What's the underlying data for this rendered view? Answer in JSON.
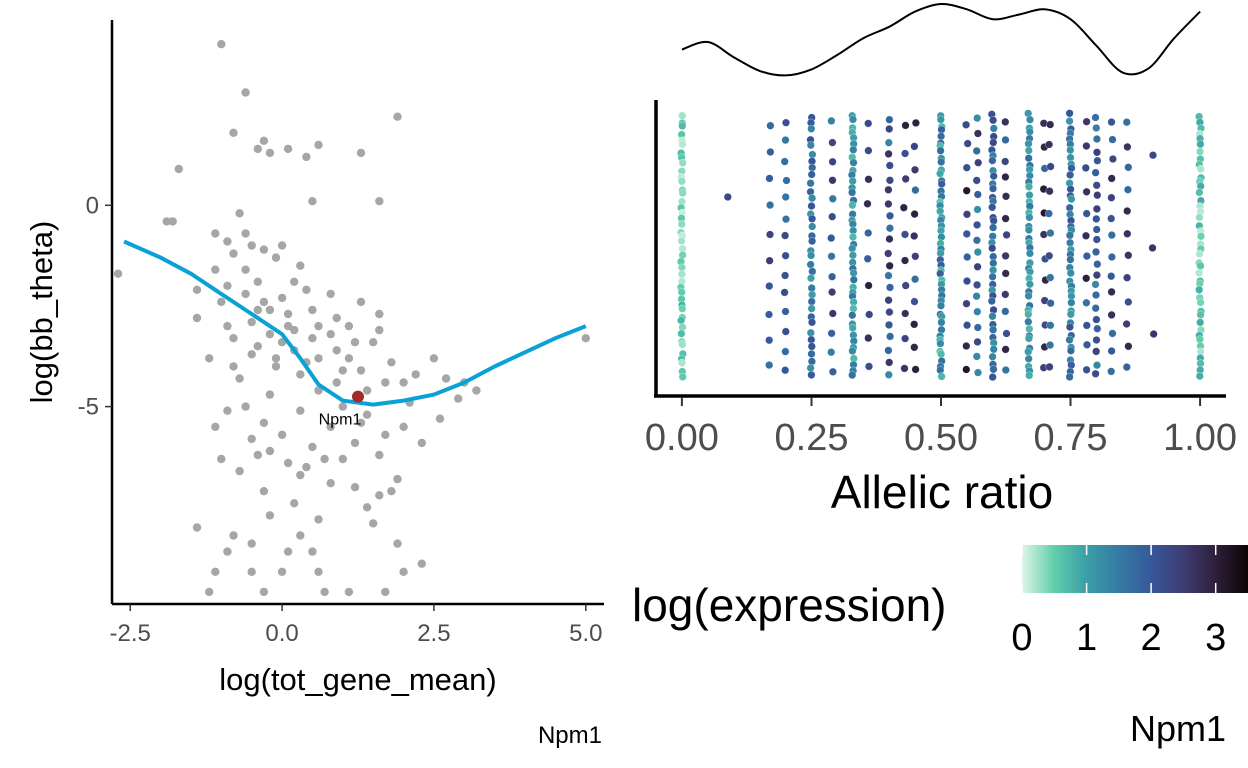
{
  "chart_data": [
    {
      "type": "scatter",
      "title": "",
      "xlabel": "log(tot_gene_mean)",
      "ylabel": "log(bb_theta)",
      "xlim": [
        -2.8,
        5.3
      ],
      "ylim": [
        -9.9,
        4.6
      ],
      "xticks": [
        -2.5,
        0.0,
        2.5,
        5.0
      ],
      "xtick_labels": [
        "-2.5",
        "0.0",
        "2.5",
        "5.0"
      ],
      "yticks": [
        0,
        -5
      ],
      "ytick_labels": [
        "0",
        "-5"
      ],
      "caption": "Npm1",
      "point_color": "#a6a6a6",
      "points_approximate": [
        [
          -1.0,
          4.0
        ],
        [
          -0.6,
          2.8
        ],
        [
          1.9,
          2.2
        ],
        [
          -0.8,
          1.8
        ],
        [
          -0.3,
          1.6
        ],
        [
          0.6,
          1.5
        ],
        [
          -0.4,
          1.4
        ],
        [
          0.1,
          1.4
        ],
        [
          0.4,
          1.2
        ],
        [
          1.3,
          1.3
        ],
        [
          -0.2,
          1.3
        ],
        [
          -1.7,
          0.9
        ],
        [
          1.6,
          0.1
        ],
        [
          0.5,
          0.1
        ],
        [
          -0.7,
          -0.2
        ],
        [
          -1.9,
          -0.4
        ],
        [
          -1.8,
          -0.4
        ],
        [
          -2.7,
          -1.7
        ],
        [
          -1.1,
          -0.7
        ],
        [
          -0.9,
          -0.9
        ],
        [
          -0.5,
          -1.0
        ],
        [
          -0.3,
          -1.1
        ],
        [
          -0.1,
          -1.3
        ],
        [
          0.0,
          -1.0
        ],
        [
          0.3,
          -1.5
        ],
        [
          -0.6,
          -1.6
        ],
        [
          0.2,
          -1.9
        ],
        [
          -1.4,
          -2.1
        ],
        [
          -1.0,
          -2.4
        ],
        [
          -0.2,
          -2.6
        ],
        [
          0.5,
          -2.6
        ],
        [
          0.9,
          -2.8
        ],
        [
          -1.4,
          -2.8
        ],
        [
          -0.5,
          -2.9
        ],
        [
          0.1,
          -3.0
        ],
        [
          0.8,
          -3.2
        ],
        [
          1.5,
          -3.4
        ],
        [
          1.6,
          -2.7
        ],
        [
          1.6,
          -3.1
        ],
        [
          1.3,
          -2.4
        ],
        [
          -0.8,
          -3.3
        ],
        [
          -0.4,
          -3.5
        ],
        [
          0.2,
          -3.6
        ],
        [
          0.6,
          -3.8
        ],
        [
          1.1,
          -3.8
        ],
        [
          1.8,
          -3.9
        ],
        [
          2.0,
          -4.4
        ],
        [
          2.5,
          -3.8
        ],
        [
          -0.1,
          -4.0
        ],
        [
          0.3,
          -4.2
        ],
        [
          0.9,
          -4.4
        ],
        [
          1.4,
          -4.6
        ],
        [
          2.1,
          -4.9
        ],
        [
          2.7,
          -4.3
        ],
        [
          3.0,
          -4.4
        ],
        [
          2.9,
          -4.8
        ],
        [
          -0.7,
          -4.3
        ],
        [
          -0.2,
          -4.7
        ],
        [
          0.3,
          -5.1
        ],
        [
          0.8,
          -5.5
        ],
        [
          1.2,
          -5.9
        ],
        [
          1.6,
          -6.2
        ],
        [
          1.9,
          -6.8
        ],
        [
          2.3,
          -5.9
        ],
        [
          2.6,
          -5.3
        ],
        [
          1.0,
          -6.3
        ],
        [
          0.5,
          -6.0
        ],
        [
          0.0,
          -5.7
        ],
        [
          -0.3,
          -5.4
        ],
        [
          -1.0,
          -6.3
        ],
        [
          -0.7,
          -6.6
        ],
        [
          -0.3,
          -7.1
        ],
        [
          0.2,
          -7.4
        ],
        [
          0.6,
          -7.8
        ],
        [
          1.4,
          -7.5
        ],
        [
          1.5,
          -7.9
        ],
        [
          -0.2,
          -7.7
        ],
        [
          -1.4,
          -8.0
        ],
        [
          -0.8,
          -8.2
        ],
        [
          -0.5,
          -8.4
        ],
        [
          0.1,
          -8.6
        ],
        [
          0.5,
          -8.6
        ],
        [
          1.9,
          -8.4
        ],
        [
          2.3,
          -8.9
        ],
        [
          -1.1,
          -9.1
        ],
        [
          -0.5,
          -9.1
        ],
        [
          0.0,
          -9.1
        ],
        [
          0.6,
          -9.1
        ],
        [
          2.0,
          -9.1
        ],
        [
          -1.2,
          -9.6
        ],
        [
          -0.3,
          -9.6
        ],
        [
          0.7,
          -9.6
        ],
        [
          1.1,
          -9.6
        ],
        [
          1.7,
          -9.6
        ],
        [
          -0.9,
          -8.6
        ],
        [
          0.3,
          -8.2
        ],
        [
          -0.4,
          -6.2
        ],
        [
          0.3,
          -6.7
        ],
        [
          0.7,
          -6.3
        ],
        [
          1.4,
          -5.2
        ],
        [
          3.2,
          -4.6
        ],
        [
          5.0,
          -3.3
        ],
        [
          -0.6,
          -0.7
        ],
        [
          -0.8,
          -1.2
        ],
        [
          -0.4,
          -1.9
        ],
        [
          0.0,
          -2.3
        ],
        [
          0.4,
          -2.1
        ],
        [
          0.8,
          -2.2
        ],
        [
          1.1,
          -3.0
        ],
        [
          1.2,
          -3.4
        ],
        [
          -1.1,
          -1.6
        ],
        [
          -0.9,
          -2.0
        ],
        [
          -0.6,
          -2.2
        ],
        [
          -0.3,
          -2.4
        ],
        [
          0.1,
          -2.7
        ],
        [
          0.5,
          -3.3
        ],
        [
          0.9,
          -3.6
        ],
        [
          -0.2,
          -3.2
        ],
        [
          0.0,
          -3.4
        ],
        [
          0.4,
          -3.9
        ],
        [
          -0.9,
          -3.0
        ],
        [
          -0.4,
          -2.6
        ],
        [
          0.2,
          -3.1
        ],
        [
          0.6,
          -3.0
        ],
        [
          1.0,
          -4.1
        ],
        [
          1.7,
          -4.4
        ],
        [
          2.2,
          -4.2
        ],
        [
          1.3,
          -4.1
        ],
        [
          -0.5,
          -3.7
        ],
        [
          -0.1,
          -3.8
        ],
        [
          0.6,
          -4.6
        ],
        [
          1.0,
          -5.0
        ],
        [
          1.3,
          -5.4
        ],
        [
          1.7,
          -5.7
        ],
        [
          2.0,
          -5.5
        ],
        [
          -0.8,
          -4.0
        ],
        [
          -1.2,
          -3.8
        ],
        [
          -0.6,
          -5.0
        ],
        [
          -0.2,
          -6.1
        ],
        [
          0.4,
          -6.5
        ],
        [
          0.8,
          -6.9
        ],
        [
          1.2,
          -7.0
        ],
        [
          1.6,
          -7.2
        ],
        [
          1.8,
          -7.1
        ],
        [
          -0.5,
          -5.8
        ],
        [
          0.1,
          -6.4
        ],
        [
          -1.1,
          -5.5
        ],
        [
          -0.9,
          -5.1
        ]
      ],
      "trend_color": "#0aa1d6",
      "trend": [
        [
          -2.6,
          -0.9
        ],
        [
          -2.0,
          -1.3
        ],
        [
          -1.5,
          -1.7
        ],
        [
          -1.0,
          -2.2
        ],
        [
          -0.5,
          -2.7
        ],
        [
          0.0,
          -3.2
        ],
        [
          0.3,
          -3.8
        ],
        [
          0.6,
          -4.45
        ],
        [
          1.0,
          -4.85
        ],
        [
          1.5,
          -4.95
        ],
        [
          2.0,
          -4.85
        ],
        [
          2.5,
          -4.7
        ],
        [
          3.0,
          -4.4
        ],
        [
          3.5,
          -4.0
        ],
        [
          4.0,
          -3.65
        ],
        [
          4.5,
          -3.3
        ],
        [
          5.0,
          -3.0
        ]
      ],
      "highlight": {
        "label": "Npm1",
        "x": 1.25,
        "y": -4.75,
        "color": "#a52a2a"
      }
    },
    {
      "type": "scatter",
      "title": "",
      "xlabel": "Allelic ratio",
      "ylabel": "",
      "xlim": [
        -0.05,
        1.05
      ],
      "xticks": [
        0,
        0.25,
        0.5,
        0.75,
        1.0
      ],
      "xtick_labels": [
        "0.00",
        "0.25",
        "0.50",
        "0.75",
        "1.00"
      ],
      "y_axis": "jittered, unlabeled",
      "caption": "Npm1",
      "color_scale": {
        "title": "log(expression)",
        "ticks": [
          0,
          1,
          2,
          3
        ],
        "tick_labels": [
          "0",
          "1",
          "2",
          "3"
        ],
        "range": [
          0,
          3.5
        ],
        "stops": [
          "#def5e5",
          "#60ceac",
          "#3b9ea8",
          "#357ba3",
          "#36589a",
          "#3f3c74",
          "#2e1f3a",
          "#0b0405"
        ]
      },
      "columns": [
        {
          "x": 0.0,
          "n": 44,
          "expr": 0.4,
          "spread": 0.4
        },
        {
          "x": 0.09,
          "n": 1,
          "expr": 2.3,
          "spread": 0
        },
        {
          "x": 0.17,
          "n": 10,
          "expr": 2.1,
          "spread": 0.6
        },
        {
          "x": 0.2,
          "n": 14,
          "expr": 1.9,
          "spread": 0.6
        },
        {
          "x": 0.25,
          "n": 36,
          "expr": 1.5,
          "spread": 0.6
        },
        {
          "x": 0.29,
          "n": 14,
          "expr": 2.0,
          "spread": 0.6
        },
        {
          "x": 0.33,
          "n": 44,
          "expr": 1.2,
          "spread": 0.5
        },
        {
          "x": 0.36,
          "n": 10,
          "expr": 2.4,
          "spread": 0.6
        },
        {
          "x": 0.4,
          "n": 22,
          "expr": 2.1,
          "spread": 0.8
        },
        {
          "x": 0.43,
          "n": 10,
          "expr": 2.5,
          "spread": 0.5
        },
        {
          "x": 0.45,
          "n": 12,
          "expr": 2.3,
          "spread": 0.8
        },
        {
          "x": 0.5,
          "n": 50,
          "expr": 1.3,
          "spread": 0.7
        },
        {
          "x": 0.55,
          "n": 12,
          "expr": 2.6,
          "spread": 0.8
        },
        {
          "x": 0.57,
          "n": 18,
          "expr": 2.0,
          "spread": 0.8
        },
        {
          "x": 0.6,
          "n": 40,
          "expr": 1.7,
          "spread": 0.6
        },
        {
          "x": 0.625,
          "n": 14,
          "expr": 2.3,
          "spread": 0.7
        },
        {
          "x": 0.67,
          "n": 44,
          "expr": 1.2,
          "spread": 0.5
        },
        {
          "x": 0.7,
          "n": 12,
          "expr": 2.5,
          "spread": 0.7
        },
        {
          "x": 0.71,
          "n": 12,
          "expr": 2.2,
          "spread": 0.7
        },
        {
          "x": 0.75,
          "n": 44,
          "expr": 1.5,
          "spread": 0.6
        },
        {
          "x": 0.78,
          "n": 12,
          "expr": 2.3,
          "spread": 0.7
        },
        {
          "x": 0.8,
          "n": 24,
          "expr": 2.0,
          "spread": 0.7
        },
        {
          "x": 0.83,
          "n": 14,
          "expr": 2.2,
          "spread": 0.7
        },
        {
          "x": 0.86,
          "n": 12,
          "expr": 2.3,
          "spread": 0.7
        },
        {
          "x": 0.91,
          "n": 3,
          "expr": 2.5,
          "spread": 0.3
        },
        {
          "x": 1.0,
          "n": 44,
          "expr": 0.5,
          "spread": 0.4
        }
      ],
      "density": {
        "x": [
          0.0,
          0.05,
          0.1,
          0.15,
          0.2,
          0.25,
          0.3,
          0.35,
          0.4,
          0.45,
          0.5,
          0.55,
          0.6,
          0.65,
          0.7,
          0.75,
          0.8,
          0.85,
          0.9,
          0.95,
          1.0
        ],
        "y": [
          0.4,
          0.5,
          0.3,
          0.12,
          0.06,
          0.14,
          0.33,
          0.55,
          0.7,
          0.9,
          1.0,
          0.93,
          0.8,
          0.86,
          0.93,
          0.8,
          0.45,
          0.1,
          0.15,
          0.55,
          0.9
        ]
      }
    }
  ]
}
